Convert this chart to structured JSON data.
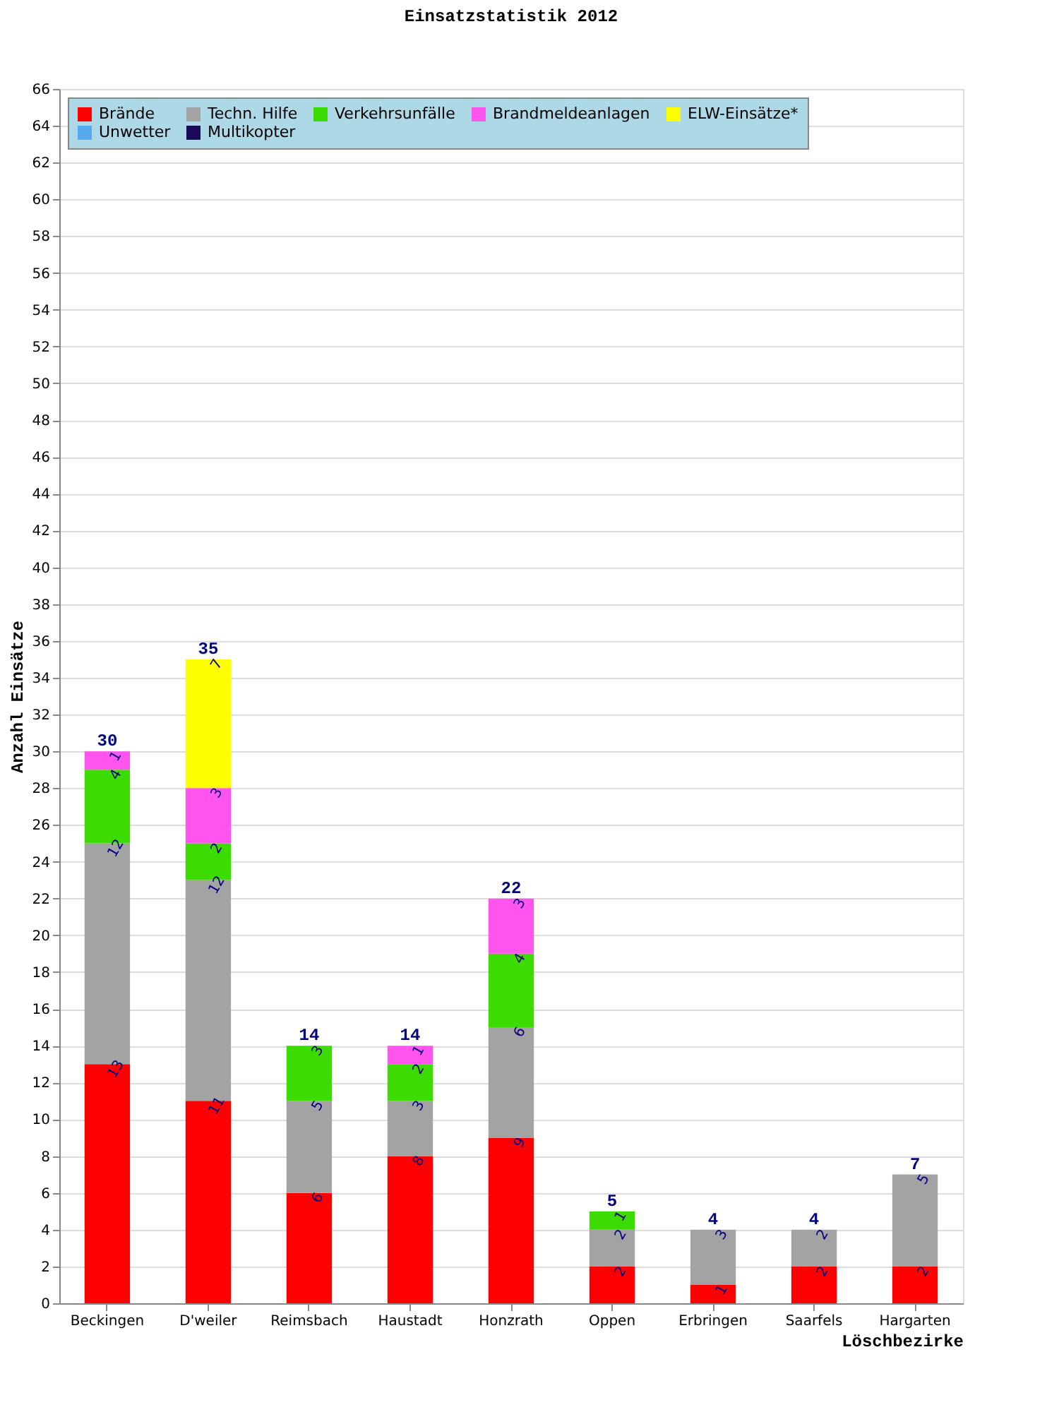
{
  "chart_data": {
    "type": "bar",
    "title": "Einsatzstatistik 2012",
    "xlabel": "Löschbezirke",
    "ylabel": "Anzahl Einsätze",
    "categories": [
      "Beckingen",
      "D'weiler",
      "Reimsbach",
      "Haustadt",
      "Honzrath",
      "Oppen",
      "Erbringen",
      "Saarfels",
      "Hargarten"
    ],
    "stacked": true,
    "data_labels": true,
    "grid": "y",
    "legend": "top left",
    "ylim": [
      0,
      66
    ],
    "yticks": [
      0,
      2,
      4,
      6,
      8,
      10,
      12,
      14,
      16,
      18,
      20,
      22,
      24,
      26,
      28,
      30,
      32,
      34,
      36,
      38,
      40,
      42,
      44,
      46,
      48,
      50,
      52,
      54,
      56,
      58,
      60,
      62,
      64,
      66
    ],
    "series": [
      {
        "name": "Brände",
        "color": "#ff0000",
        "values": [
          13,
          11,
          6,
          8,
          9,
          2,
          1,
          2,
          2
        ]
      },
      {
        "name": "Techn. Hilfe",
        "color": "#a3a3a3",
        "values": [
          12,
          12,
          5,
          3,
          6,
          2,
          3,
          2,
          5
        ]
      },
      {
        "name": "Verkehrsunfälle",
        "color": "#3ddc00",
        "values": [
          4,
          2,
          3,
          2,
          4,
          1,
          null,
          null,
          null
        ]
      },
      {
        "name": "Brandmeldeanlagen",
        "color": "#ff55ee",
        "values": [
          1,
          3,
          null,
          1,
          3,
          null,
          null,
          null,
          null
        ]
      },
      {
        "name": "ELW-Einsätze*",
        "color": "#ffff00",
        "values": [
          null,
          7,
          null,
          null,
          null,
          null,
          null,
          null,
          null
        ]
      },
      {
        "name": "Unwetter",
        "color": "#55aaee",
        "values": [
          null,
          null,
          null,
          null,
          null,
          null,
          null,
          null,
          null
        ]
      },
      {
        "name": "Multikopter",
        "color": "#1a0a5a",
        "values": [
          null,
          null,
          null,
          null,
          null,
          null,
          null,
          null,
          null
        ]
      }
    ],
    "totals": [
      "30",
      "35",
      "14",
      "14",
      "22",
      "5",
      "4",
      "4",
      "7"
    ]
  }
}
